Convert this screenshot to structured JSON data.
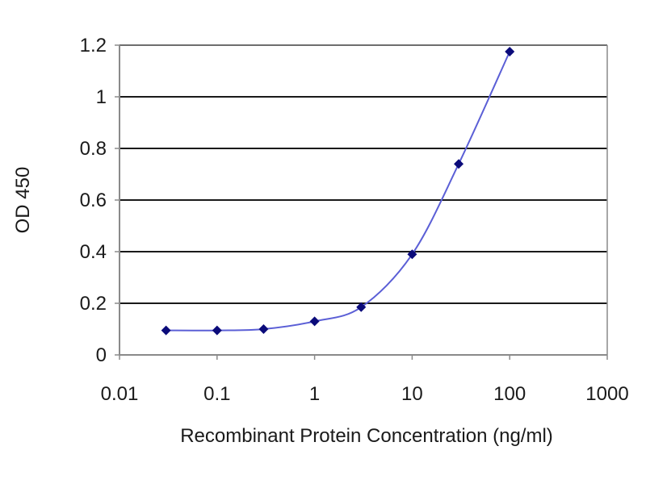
{
  "chart_data": {
    "type": "line",
    "title": "",
    "xlabel": "Recombinant Protein Concentration (ng/ml)",
    "ylabel": "OD 450",
    "x_scale": "log",
    "xlim": [
      0.01,
      1000
    ],
    "ylim": [
      0,
      1.2
    ],
    "x_ticks": [
      0.01,
      0.1,
      1,
      10,
      100,
      1000
    ],
    "x_tick_labels": [
      "0.01",
      "0.1",
      "1",
      "10",
      "100",
      "1000"
    ],
    "y_ticks": [
      0,
      0.2,
      0.4,
      0.6,
      0.8,
      1.0,
      1.2
    ],
    "y_tick_labels": [
      "0",
      "0.2",
      "0.4",
      "0.6",
      "0.8",
      "1",
      "1.2"
    ],
    "grid": "horizontal",
    "legend": "none",
    "series": [
      {
        "x": [
          0.03,
          0.1,
          0.3,
          1,
          3,
          10,
          30,
          100
        ],
        "y": [
          0.095,
          0.095,
          0.1,
          0.13,
          0.185,
          0.39,
          0.74,
          1.175
        ]
      }
    ],
    "colors": {
      "line": "#5b5fd6",
      "marker": "#0b0b7a",
      "grid": "#1a1a1a",
      "axis": "#8a8a8a"
    }
  }
}
